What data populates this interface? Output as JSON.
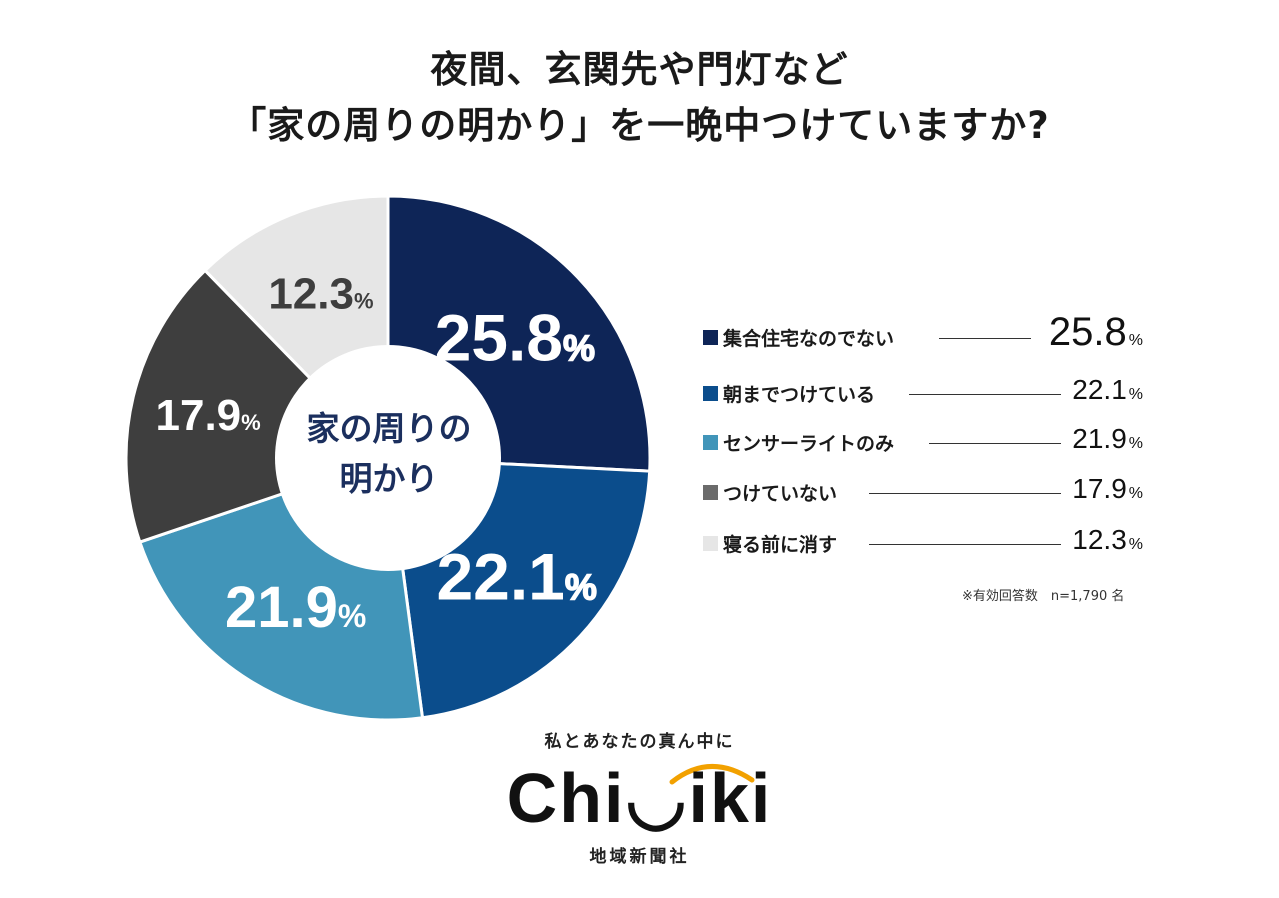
{
  "title": {
    "line1": "夜間、玄関先や門灯など",
    "line2": "「家の周りの明かり」を一晩中つけていますか?"
  },
  "center_label": {
    "line1": "家の周りの",
    "line2": "明かり"
  },
  "chart_data": {
    "type": "pie",
    "title": "夜間、玄関先や門灯など「家の周りの明かり」を一晩中つけていますか?",
    "donut": true,
    "center_label": "家の周りの明かり",
    "categories": [
      "集合住宅なのでない",
      "朝までつけている",
      "センサーライトのみ",
      "つけていない",
      "寝る前に消す"
    ],
    "values": [
      25.8,
      22.1,
      21.9,
      17.9,
      12.3
    ],
    "unit": "%",
    "colors": [
      "#0e2557",
      "#0b4d8c",
      "#4195b9",
      "#3e3e3e",
      "#e6e6e6"
    ],
    "legend_position": "right"
  },
  "legend": [
    {
      "label": "集合住宅なのでない",
      "value": "25.8",
      "unit": "%",
      "color": "#0e2557"
    },
    {
      "label": "朝までつけている",
      "value": "22.1",
      "unit": "%",
      "color": "#0b4d8c"
    },
    {
      "label": "センサーライトのみ",
      "value": "21.9",
      "unit": "%",
      "color": "#4195b9"
    },
    {
      "label": "つけていない",
      "value": "17.9",
      "unit": "%",
      "color": "#6b6b6b"
    },
    {
      "label": "寝る前に消す",
      "value": "12.3",
      "unit": "%",
      "color": "#e6e6e6"
    }
  ],
  "note": "※有効回答数　n=1,790 名",
  "brand": {
    "tagline": "私とあなたの真ん中に",
    "logo": "Chi◡iki",
    "company": "地域新聞社"
  }
}
